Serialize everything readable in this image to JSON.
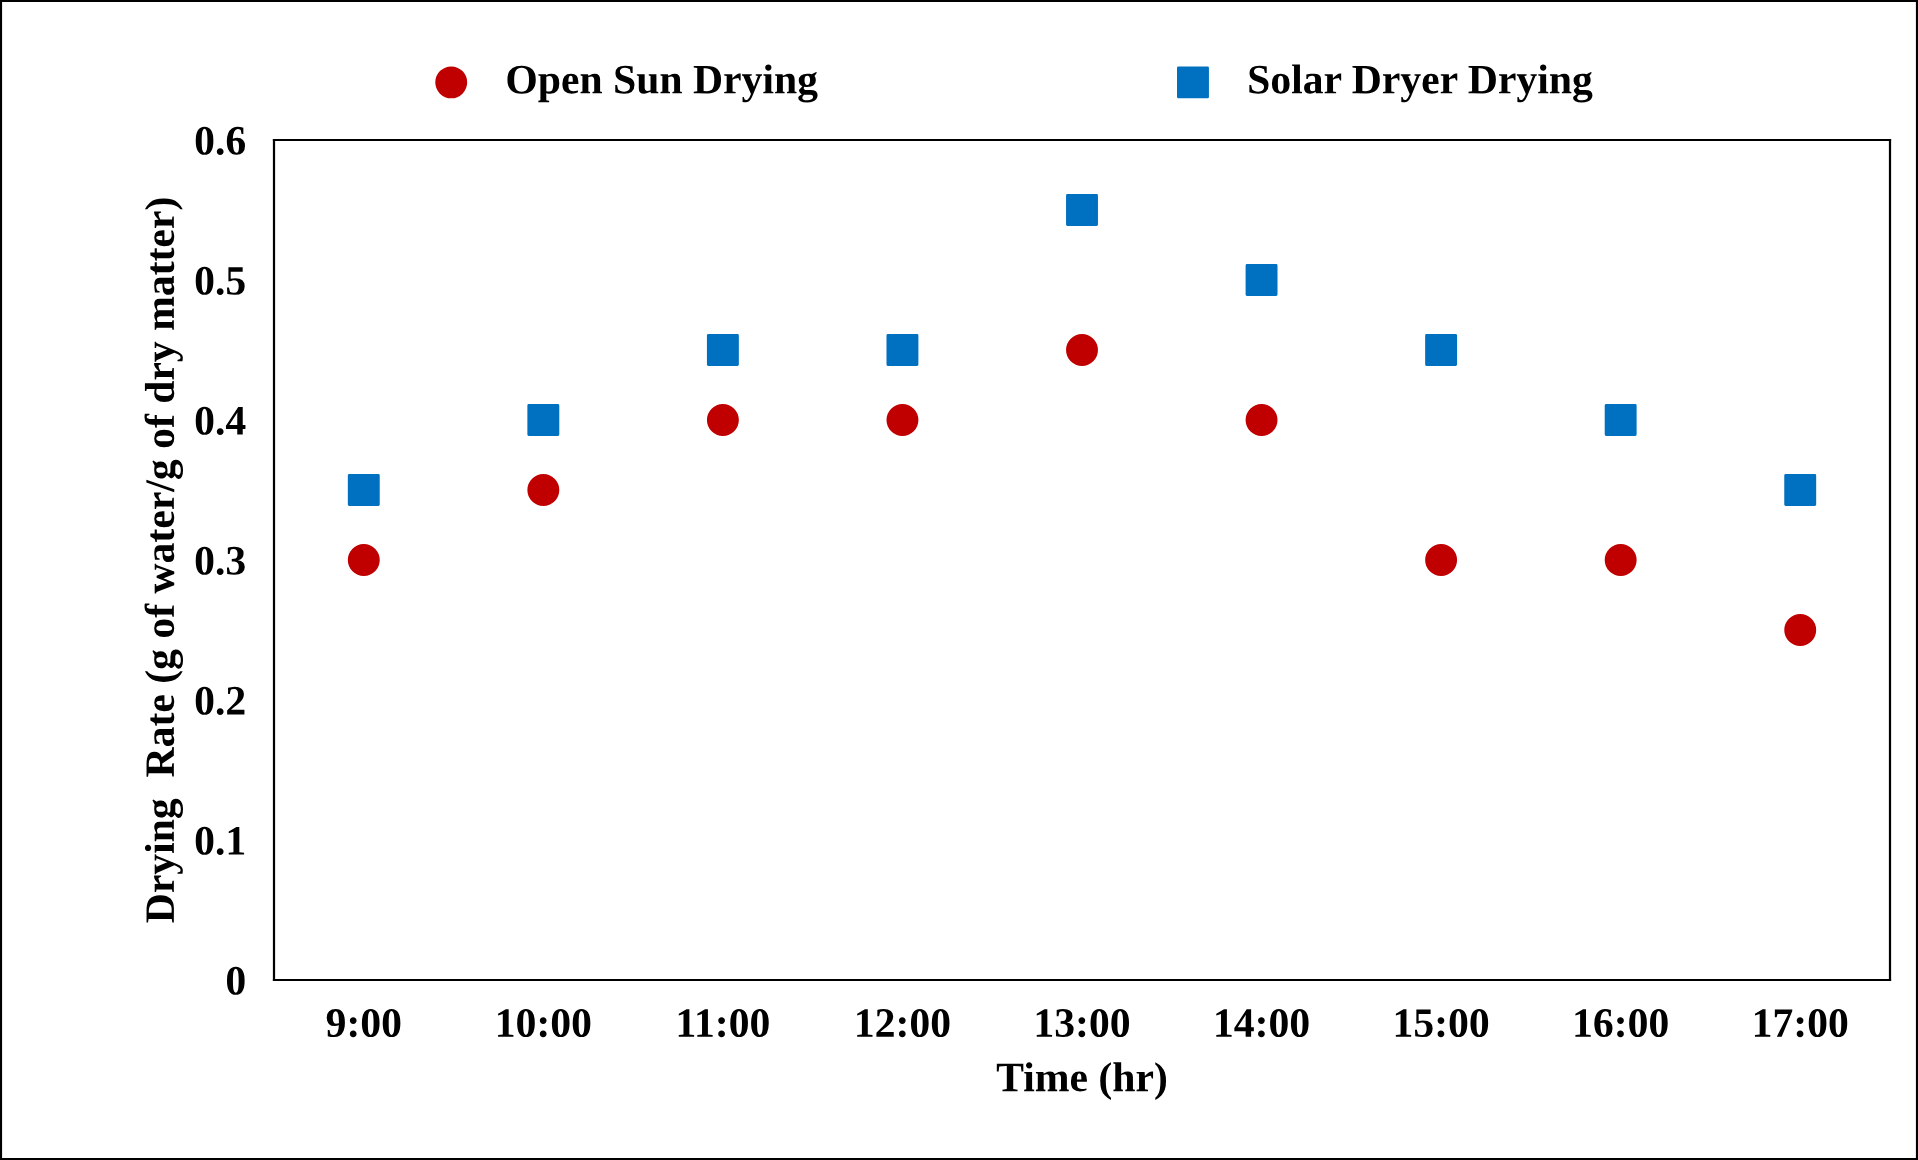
{
  "chart_data": {
    "type": "scatter",
    "xlabel": "Time (hr)",
    "ylabel": "Drying  Rate (g of water/g of dry matter)",
    "categories": [
      "9:00",
      "10:00",
      "11:00",
      "12:00",
      "13:00",
      "14:00",
      "15:00",
      "16:00",
      "17:00"
    ],
    "series": [
      {
        "name": "Open Sun Drying",
        "color": "#c00000",
        "marker": "circle",
        "values": [
          0.3,
          0.35,
          0.4,
          0.4,
          0.45,
          0.4,
          0.3,
          0.3,
          0.25
        ]
      },
      {
        "name": "Solar Dryer Drying",
        "color": "#0070c0",
        "marker": "square",
        "values": [
          0.35,
          0.4,
          0.45,
          0.45,
          0.55,
          0.5,
          0.45,
          0.4,
          0.35
        ]
      }
    ],
    "ylim": [
      0,
      0.6
    ],
    "yticks": [
      0,
      0.1,
      0.2,
      0.3,
      0.4,
      0.5,
      0.6
    ],
    "grid": false,
    "legend": "top"
  }
}
